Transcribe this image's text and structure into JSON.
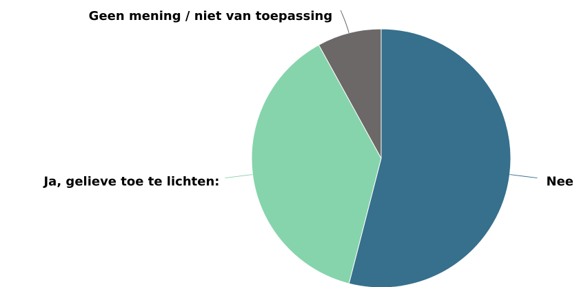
{
  "chart_data": {
    "type": "pie",
    "categories": [
      "Nee",
      "Ja, gelieve toe te lichten:",
      "Geen mening / niet van toepassing"
    ],
    "values": [
      54,
      38,
      8
    ],
    "colors": [
      "#36708c",
      "#86d4ac",
      "#6b6867"
    ]
  }
}
